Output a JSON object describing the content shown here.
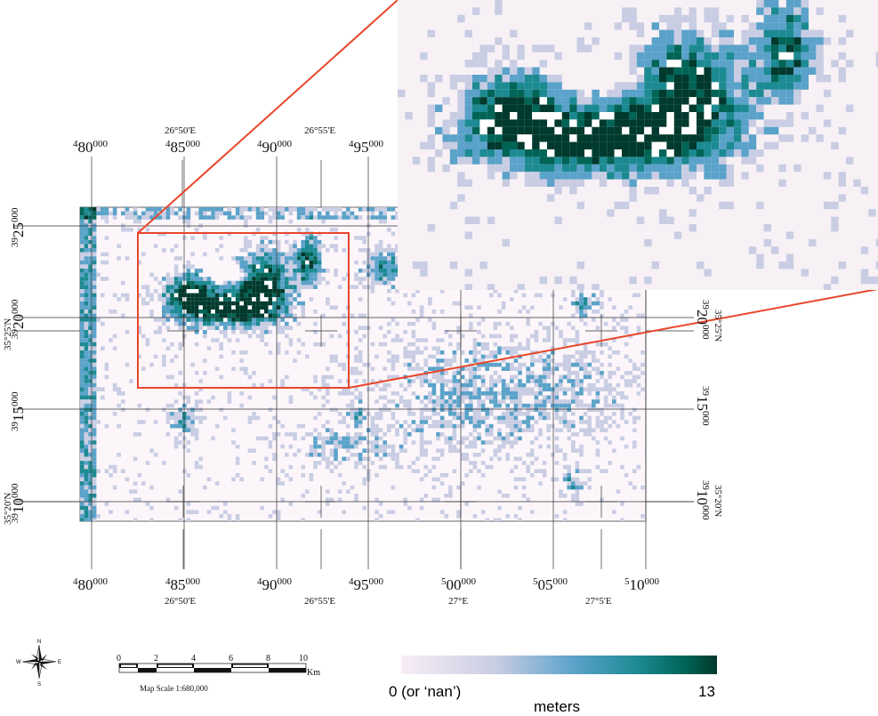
{
  "colors": {
    "ramp": [
      "#f8eef6",
      "#c9cde3",
      "#5aa2c9",
      "#1c8a92",
      "#006456",
      "#00392d"
    ],
    "frame_background": "#fcf6fa",
    "zoom_box": "#e8462a",
    "grid": "#333333"
  },
  "grid": {
    "bottom_easting_labels": [
      {
        "big": "4",
        "mid": "80",
        "small": "000"
      },
      {
        "big": "4",
        "mid": "85",
        "small": "000"
      },
      {
        "big": "4",
        "mid": "90",
        "small": "000"
      },
      {
        "big": "4",
        "mid": "95",
        "small": "000"
      },
      {
        "big": "5",
        "mid": "00",
        "small": "000"
      },
      {
        "big": "5",
        "mid": "05",
        "small": "000"
      },
      {
        "big": "5",
        "mid": "10",
        "small": "000"
      }
    ],
    "top_easting_labels": [
      {
        "big": "4",
        "mid": "80",
        "small": "000"
      },
      {
        "big": "4",
        "mid": "85",
        "small": "000"
      },
      {
        "big": "4",
        "mid": "90",
        "small": "000"
      },
      {
        "big": "4",
        "mid": "95",
        "small": "000"
      }
    ],
    "left_northing_labels": [
      {
        "big": "39",
        "mid": "25",
        "small": "000"
      },
      {
        "big": "39",
        "mid": "20",
        "small": "000"
      },
      {
        "big": "39",
        "mid": "15",
        "small": "000"
      },
      {
        "big": "39",
        "mid": "10",
        "small": "000"
      }
    ],
    "right_northing_labels": [
      {
        "big": "39",
        "mid": "20",
        "small": "000"
      },
      {
        "big": "39",
        "mid": "15",
        "small": "000"
      },
      {
        "big": "39",
        "mid": "10",
        "small": "000"
      }
    ],
    "top_longitude_labels": [
      "26°50'E",
      "26°55'E"
    ],
    "bottom_longitude_labels": [
      "26°50'E",
      "26°55'E",
      "27°E",
      "27°5'E"
    ],
    "left_latitude_labels": [
      "35°25'N",
      "35°20'N"
    ],
    "right_latitude_labels": [
      "35°25'N",
      "35°20'N"
    ]
  },
  "compass": {
    "n": "N",
    "s": "S",
    "e": "E",
    "w": "W"
  },
  "scale_bar": {
    "ticks": [
      "0",
      "2",
      "4",
      "6",
      "8",
      "10"
    ],
    "unit": "Km",
    "caption": "Map Scale 1:680,000"
  },
  "legend": {
    "min_label": "0 (or ‘nan’)",
    "max_label": "13",
    "unit_label": "meters"
  }
}
